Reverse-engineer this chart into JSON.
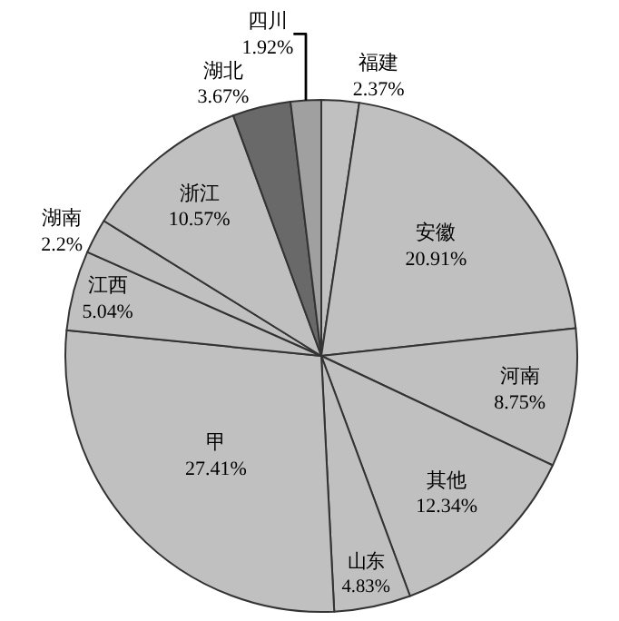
{
  "chart_data": {
    "type": "other",
    "categories": [
      "福建",
      "安徽",
      "河南",
      "其他",
      "山东",
      "甲",
      "江西",
      "湖南",
      "浙江",
      "湖北",
      "四川"
    ],
    "values": [
      2.37,
      20.91,
      8.75,
      12.34,
      4.83,
      27.41,
      5.04,
      2.2,
      10.57,
      3.67,
      1.92
    ],
    "value_labels": [
      "2.37%",
      "20.91%",
      "8.75%",
      "12.34%",
      "4.83%",
      "27.41%",
      "5.04%",
      "2.2%",
      "10.57%",
      "3.67%",
      "1.92%"
    ],
    "colors": [
      "#c0c0c0",
      "#c0c0c0",
      "#c0c0c0",
      "#c0c0c0",
      "#c0c0c0",
      "#c0c0c0",
      "#c0c0c0",
      "#c0c0c0",
      "#c0c0c0",
      "#696969",
      "#a0a0a0"
    ]
  }
}
